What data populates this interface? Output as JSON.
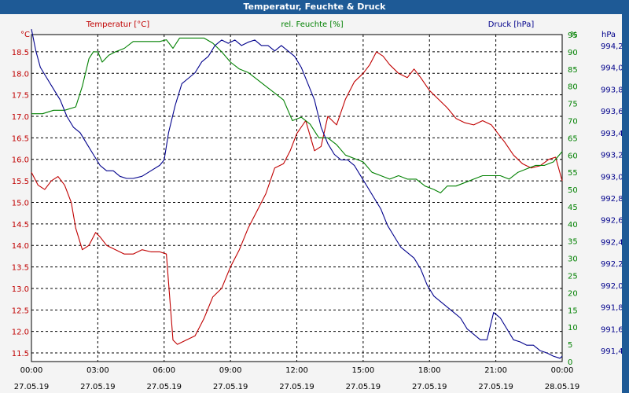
{
  "title": "Temperatur, Feuchte & Druck",
  "colors": {
    "titlebar": "#1e5a96",
    "temp": "#c00000",
    "humidity": "#008000",
    "pressure": "#00008b"
  },
  "chart_data": {
    "type": "line",
    "title": "Temperatur, Feuchte & Druck",
    "grid": true,
    "x_tick_times": [
      "00:00",
      "03:00",
      "06:00",
      "09:00",
      "12:00",
      "15:00",
      "18:00",
      "21:00",
      "00:00"
    ],
    "x_tick_dates": [
      "27.05.19",
      "27.05.19",
      "27.05.19",
      "27.05.19",
      "27.05.19",
      "27.05.19",
      "27.05.19",
      "27.05.19",
      "28.05.19"
    ],
    "xlim_hours": [
      0,
      24
    ],
    "axes": {
      "temp": {
        "label": "Temperatur [°C]",
        "unit": "°C",
        "ylim": [
          11.3,
          18.9
        ],
        "ticks": [
          "11.5",
          "12.0",
          "12.5",
          "13.0",
          "13.5",
          "14.0",
          "14.5",
          "15.0",
          "15.5",
          "16.0",
          "16.5",
          "17.0",
          "17.5",
          "18.0",
          "18.5"
        ]
      },
      "humidity": {
        "label": "rel. Feuchte [%]",
        "unit": "%",
        "ylim": [
          0,
          95
        ],
        "ticks": [
          "0",
          "5",
          "10",
          "15",
          "20",
          "25",
          "30",
          "35",
          "40",
          "45",
          "50",
          "55",
          "60",
          "65",
          "70",
          "75",
          "80",
          "85",
          "90",
          "95"
        ]
      },
      "pressure": {
        "label": "Druck [hPa]",
        "unit": "hPa",
        "ylim": [
          991.3,
          994.3
        ],
        "ticks": [
          "991,40",
          "991,60",
          "991,80",
          "992,00",
          "992,20",
          "992,40",
          "992,60",
          "992,80",
          "993,00",
          "993,20",
          "993,40",
          "993,60",
          "993,80",
          "994,00",
          "994,20"
        ]
      }
    },
    "series": [
      {
        "name": "Temperatur [°C]",
        "axis": "temp",
        "x": [
          0,
          0.3,
          0.6,
          0.9,
          1.2,
          1.5,
          1.8,
          2.0,
          2.3,
          2.6,
          2.9,
          3.1,
          3.4,
          3.8,
          4.2,
          4.6,
          5.0,
          5.4,
          5.8,
          6.1,
          6.4,
          6.6,
          7.0,
          7.4,
          7.8,
          8.2,
          8.6,
          9.0,
          9.4,
          9.8,
          10.2,
          10.6,
          11.0,
          11.4,
          11.7,
          12.0,
          12.4,
          12.8,
          13.1,
          13.4,
          13.8,
          14.2,
          14.6,
          15.0,
          15.3,
          15.6,
          15.9,
          16.2,
          16.6,
          17.0,
          17.3,
          17.6,
          18.0,
          18.4,
          18.8,
          19.2,
          19.6,
          20.0,
          20.4,
          20.8,
          21.1,
          21.4,
          21.8,
          22.2,
          22.6,
          23.0,
          23.4,
          23.7,
          24.0
        ],
        "y": [
          15.7,
          15.4,
          15.3,
          15.5,
          15.6,
          15.4,
          15.0,
          14.4,
          13.9,
          14.0,
          14.3,
          14.2,
          14.0,
          13.9,
          13.8,
          13.8,
          13.9,
          13.85,
          13.85,
          13.8,
          11.8,
          11.7,
          11.8,
          11.9,
          12.3,
          12.8,
          13.0,
          13.5,
          13.9,
          14.4,
          14.8,
          15.2,
          15.8,
          15.9,
          16.2,
          16.6,
          16.9,
          16.2,
          16.3,
          17.0,
          16.8,
          17.4,
          17.8,
          18.0,
          18.2,
          18.5,
          18.4,
          18.2,
          18.0,
          17.9,
          18.1,
          17.9,
          17.6,
          17.4,
          17.2,
          16.95,
          16.85,
          16.8,
          16.9,
          16.8,
          16.6,
          16.4,
          16.1,
          15.9,
          15.8,
          15.85,
          16.0,
          16.05,
          15.5
        ]
      },
      {
        "name": "rel. Feuchte [%]",
        "axis": "humidity",
        "x": [
          0,
          0.5,
          1.0,
          1.5,
          2.0,
          2.3,
          2.6,
          2.8,
          3.0,
          3.2,
          3.5,
          3.8,
          4.2,
          4.6,
          5.0,
          5.4,
          5.8,
          6.1,
          6.4,
          6.7,
          7.0,
          7.4,
          7.8,
          8.2,
          8.6,
          9.0,
          9.4,
          9.8,
          10.2,
          10.6,
          11.0,
          11.4,
          11.8,
          12.2,
          12.6,
          13.0,
          13.4,
          13.8,
          14.2,
          14.6,
          15.0,
          15.4,
          15.8,
          16.2,
          16.6,
          17.0,
          17.4,
          17.8,
          18.2,
          18.5,
          18.8,
          19.2,
          19.6,
          20.0,
          20.4,
          20.8,
          21.2,
          21.6,
          22.0,
          22.4,
          22.8,
          23.2,
          23.6,
          24.0
        ],
        "y": [
          72,
          72,
          73,
          73,
          74,
          80,
          88,
          90,
          90,
          87,
          89,
          90,
          91,
          93,
          93,
          93,
          93,
          93.5,
          91,
          94,
          94,
          94,
          94,
          92.5,
          90,
          87,
          85,
          84,
          82,
          80,
          78,
          76,
          70,
          71,
          69,
          65,
          65,
          63,
          60,
          59,
          58,
          55,
          54,
          53,
          54,
          53,
          53,
          51,
          50,
          49,
          51,
          51,
          52,
          53,
          54,
          54,
          54,
          53,
          55,
          56,
          57,
          57,
          58,
          61
        ]
      },
      {
        "name": "Druck [hPa]",
        "axis": "pressure",
        "x": [
          0,
          0.2,
          0.4,
          0.7,
          1.0,
          1.3,
          1.6,
          1.9,
          2.2,
          2.5,
          2.8,
          3.1,
          3.4,
          3.7,
          4.0,
          4.3,
          4.6,
          5.0,
          5.4,
          5.8,
          6.0,
          6.2,
          6.5,
          6.8,
          7.1,
          7.4,
          7.7,
          8.0,
          8.3,
          8.6,
          8.9,
          9.2,
          9.5,
          9.8,
          10.1,
          10.4,
          10.7,
          11.0,
          11.3,
          11.6,
          11.9,
          12.2,
          12.5,
          12.8,
          13.1,
          13.4,
          13.7,
          14.0,
          14.3,
          14.6,
          14.9,
          15.2,
          15.5,
          15.8,
          16.1,
          16.4,
          16.7,
          17.0,
          17.3,
          17.6,
          17.9,
          18.2,
          18.5,
          18.8,
          19.1,
          19.4,
          19.7,
          20.0,
          20.3,
          20.6,
          20.9,
          21.2,
          21.5,
          21.8,
          22.1,
          22.4,
          22.7,
          23.0,
          23.3,
          23.6,
          23.9,
          24.0
        ],
        "y": [
          994.35,
          994.15,
          994.0,
          993.9,
          993.8,
          993.7,
          993.55,
          993.45,
          993.4,
          993.3,
          993.2,
          993.1,
          993.05,
          993.05,
          993.0,
          992.98,
          992.98,
          993.0,
          993.05,
          993.1,
          993.15,
          993.4,
          993.65,
          993.85,
          993.9,
          993.95,
          994.05,
          994.1,
          994.2,
          994.25,
          994.22,
          994.25,
          994.2,
          994.23,
          994.25,
          994.2,
          994.2,
          994.15,
          994.2,
          994.15,
          994.1,
          994.0,
          993.85,
          993.7,
          993.45,
          993.3,
          993.2,
          993.15,
          993.15,
          993.1,
          993.0,
          992.9,
          992.8,
          992.7,
          992.55,
          992.45,
          992.35,
          992.3,
          992.25,
          992.15,
          992.0,
          991.9,
          991.85,
          991.8,
          991.75,
          991.7,
          991.6,
          991.55,
          991.5,
          991.5,
          991.75,
          991.7,
          991.6,
          991.5,
          991.48,
          991.45,
          991.45,
          991.4,
          991.38,
          991.35,
          991.33,
          991.35
        ]
      }
    ]
  }
}
